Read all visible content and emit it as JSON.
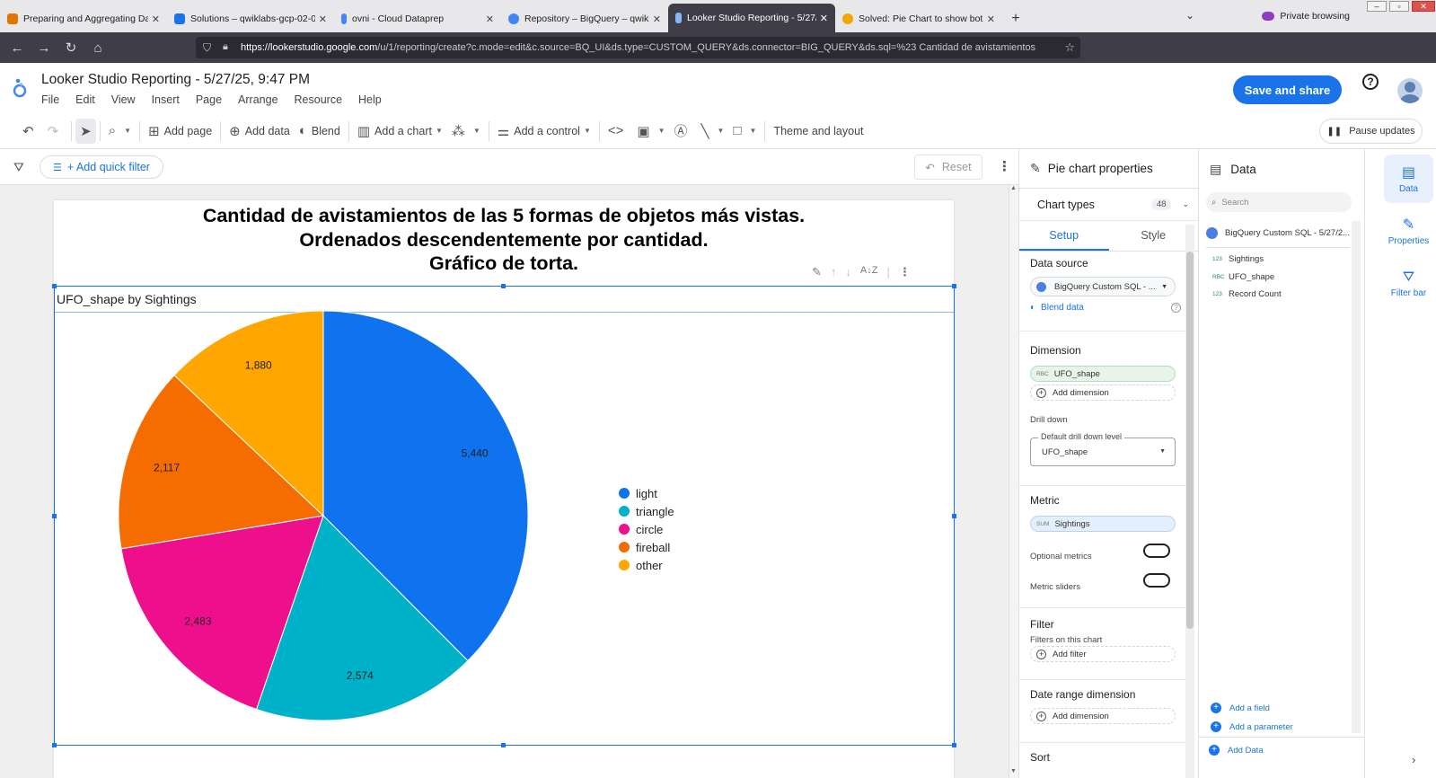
{
  "browser": {
    "tabs": [
      {
        "title": "Preparing and Aggregating Dat",
        "color": "#e37400"
      },
      {
        "title": "Solutions – qwiklabs-gcp-02-0",
        "color": "#1a73e8"
      },
      {
        "title": "ovni - Cloud Dataprep",
        "color": "#4285f4"
      },
      {
        "title": "Repository – BigQuery – qwikla",
        "color": "#4285f4"
      },
      {
        "title": "Looker Studio Reporting - 5/27/",
        "color": "#4285f4"
      },
      {
        "title": "Solved: Pie Chart to show both",
        "color": "#f2a600"
      }
    ],
    "private_label": "Private browsing",
    "url_host": "https://lookerstudio.google.com",
    "url_rest": "/u/1/reporting/create?c.mode=edit&c.source=BQ_UI&ds.type=CUSTOM_QUERY&ds.connector=BIG_QUERY&ds.sql=%23 Cantidad de avistamientos",
    "ext_badge": "14"
  },
  "app": {
    "title": "Looker Studio Reporting - 5/27/25, 9:47 PM",
    "menus": [
      "File",
      "Edit",
      "View",
      "Insert",
      "Page",
      "Arrange",
      "Resource",
      "Help"
    ],
    "save_label": "Save and share"
  },
  "toolbar": {
    "add_page": "Add page",
    "add_data": "Add data",
    "blend": "Blend",
    "add_chart": "Add a chart",
    "add_control": "Add a control",
    "theme": "Theme and layout",
    "pause": "Pause updates"
  },
  "filterbar": {
    "quick_filter": "+ Add quick filter",
    "reset": "Reset"
  },
  "report": {
    "heading_lines": [
      "Cantidad de avistamientos de las 5 formas de objetos más vistas.",
      "Ordenados descendentemente por cantidad.",
      "Gráfico de torta."
    ],
    "chart_title": "UFO_shape by Sightings"
  },
  "chart_data": {
    "type": "pie",
    "title": "UFO_shape by Sightings",
    "categories": [
      "light",
      "triangle",
      "circle",
      "fireball",
      "other"
    ],
    "values": [
      5440,
      2574,
      2483,
      2117,
      1880
    ],
    "value_labels": [
      "5,440",
      "2,574",
      "2,483",
      "2,117",
      "1,880"
    ],
    "colors": [
      "#0f73f0",
      "#00b2c9",
      "#ee0f8c",
      "#f56d00",
      "#ffa600"
    ],
    "legend_position": "right"
  },
  "props": {
    "title": "Pie chart properties",
    "chart_types": "Chart types",
    "chart_types_count": "48",
    "tab_setup": "Setup",
    "tab_style": "Style",
    "data_source_label": "Data source",
    "data_source_value": "BigQuery Custom SQL - ...",
    "blend_data": "Blend data",
    "dimension_label": "Dimension",
    "dimension_tag": "RBC",
    "dimension_value": "UFO_shape",
    "add_dimension": "Add dimension",
    "drill_down": "Drill down",
    "drill_level_label": "Default drill down level",
    "drill_level_value": "UFO_shape",
    "metric_label": "Metric",
    "metric_tag": "SUM",
    "metric_value": "Sightings",
    "optional_metrics": "Optional metrics",
    "metric_sliders": "Metric sliders",
    "filter_label": "Filter",
    "filters_on_chart": "Filters on this chart",
    "add_filter": "Add filter",
    "date_range_label": "Date range dimension",
    "add_date_dimension": "Add dimension",
    "sort_label": "Sort"
  },
  "data_panel": {
    "title": "Data",
    "search_placeholder": "Search",
    "source": "BigQuery Custom SQL - 5/27/2...",
    "fields": [
      {
        "type": "123",
        "name": "Sightings"
      },
      {
        "type": "RBC",
        "name": "UFO_shape"
      },
      {
        "type": "123",
        "name": "Record Count"
      }
    ],
    "add_field": "Add a field",
    "add_parameter": "Add a parameter",
    "add_data": "Add Data"
  },
  "rail": {
    "data": "Data",
    "properties": "Properties",
    "filter_bar": "Filter bar"
  }
}
